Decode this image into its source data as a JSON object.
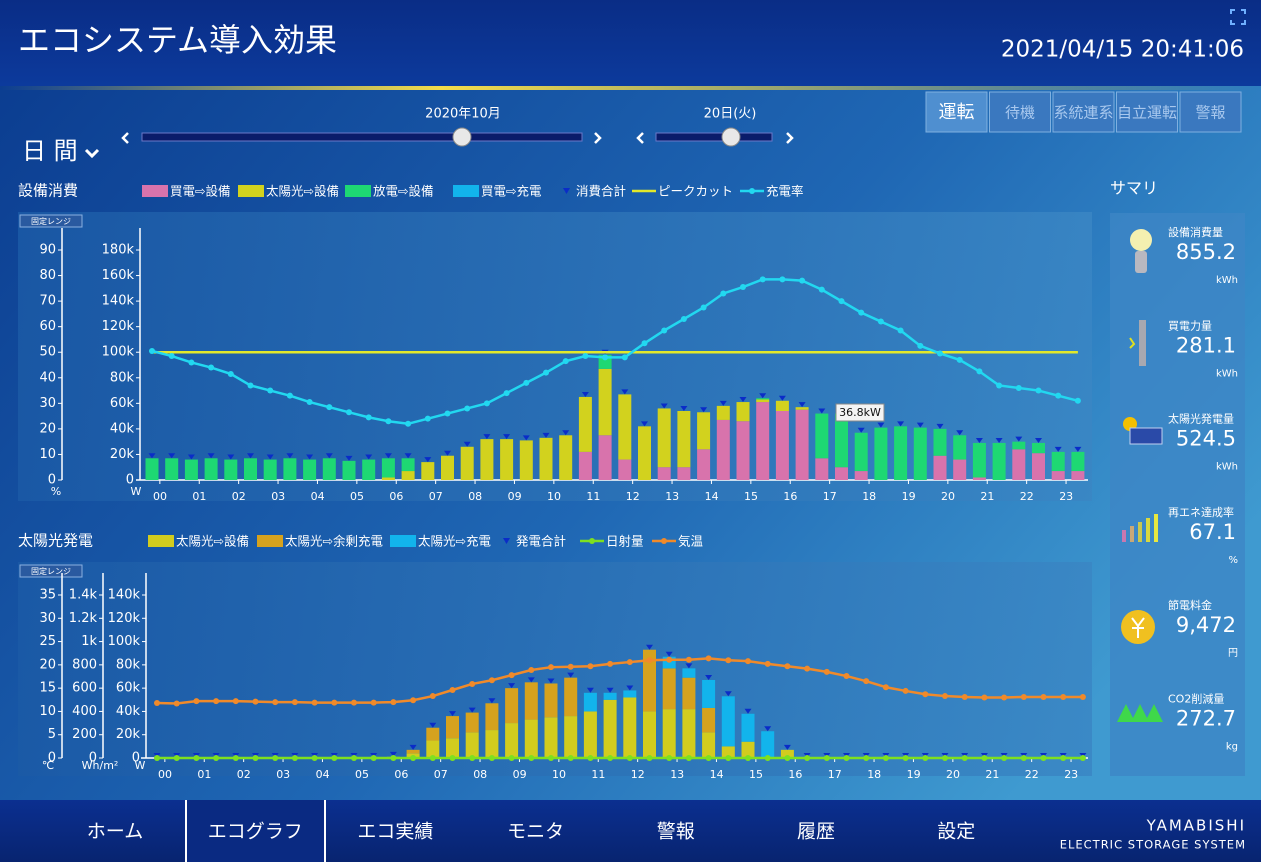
{
  "header": {
    "title": "エコシステム導入効果",
    "datetime": "2021/04/15 20:41:06"
  },
  "modes": [
    "運転",
    "待機",
    "系統連系",
    "自立運転",
    "警報"
  ],
  "period": {
    "view": "日 間",
    "month": "2020年10月",
    "day": "20日(火)"
  },
  "summary": {
    "title": "サマリ",
    "items": [
      {
        "label": "設備消費量",
        "value": "855.2",
        "unit": "kWh"
      },
      {
        "label": "買電力量",
        "value": "281.1",
        "unit": "kWh"
      },
      {
        "label": "太陽光発電量",
        "value": "524.5",
        "unit": "kWh"
      },
      {
        "label": "再エネ達成率",
        "value": "67.1",
        "unit": "%"
      },
      {
        "label": "節電料金",
        "value": "9,472",
        "unit": "円"
      },
      {
        "label": "CO2削減量",
        "value": "272.7",
        "unit": "kg"
      }
    ]
  },
  "nav": [
    "ホーム",
    "エコグラフ",
    "エコ実績",
    "モニタ",
    "警報",
    "履歴",
    "設定"
  ],
  "logo": {
    "name": "YAMABISHI",
    "tagline": "ELECTRIC STORAGE SYSTEM"
  },
  "chart_data": [
    {
      "type": "bar",
      "title": "設備消費",
      "range_button": "固定レンジ",
      "tooltip": "36.8kW",
      "categories": [
        "00",
        null,
        "01",
        null,
        "02",
        null,
        "03",
        null,
        "04",
        null,
        "05",
        null,
        "06",
        null,
        "07",
        null,
        "08",
        null,
        "09",
        null,
        "10",
        null,
        "11",
        null,
        "12",
        null,
        "13",
        null,
        "14",
        null,
        "15",
        null,
        "16",
        null,
        "17",
        null,
        "18",
        null,
        "19",
        null,
        "20",
        null,
        "21",
        null,
        "22",
        null,
        "23",
        null
      ],
      "ylim": [
        0,
        180000
      ],
      "yticks": [
        0,
        {
          "value": 20000,
          "label": "20k"
        },
        {
          "value": 40000,
          "label": "40k"
        },
        {
          "value": 60000,
          "label": "60k"
        },
        {
          "value": 80000,
          "label": "80k"
        },
        {
          "value": 100000,
          "label": "100k"
        },
        {
          "value": 120000,
          "label": "120k"
        },
        {
          "value": 140000,
          "label": "140k"
        },
        {
          "value": 160000,
          "label": "160k"
        },
        {
          "value": 180000,
          "label": "180k"
        }
      ],
      "ylabel": "W",
      "y2lim": [
        0,
        90
      ],
      "y2ticks": [
        0,
        10,
        20,
        30,
        40,
        50,
        60,
        70,
        80,
        90
      ],
      "y2label": "%",
      "series": [
        {
          "name": "買電⇨設備",
          "kind": "bar",
          "color": "#d873ac",
          "values": [
            0,
            0,
            0,
            0,
            0,
            0,
            0,
            0,
            0,
            0,
            0,
            0,
            0,
            0,
            0,
            0,
            0,
            0,
            0,
            0,
            0,
            0,
            22000,
            35000,
            16000,
            0,
            10000,
            10000,
            24000,
            47000,
            46000,
            61000,
            54000,
            55000,
            17000,
            10000,
            7000,
            0,
            0,
            0,
            19000,
            16000,
            2000,
            0,
            24000,
            21000,
            7000,
            7000
          ]
        },
        {
          "name": "太陽光⇨設備",
          "kind": "bar",
          "color": "#d2d21e",
          "values": [
            0,
            0,
            0,
            0,
            0,
            0,
            0,
            0,
            0,
            0,
            0,
            0,
            2000,
            7000,
            14000,
            19000,
            26000,
            32000,
            32000,
            31000,
            33000,
            35000,
            43000,
            52000,
            51000,
            42000,
            46000,
            44000,
            29000,
            11000,
            15000,
            2000,
            8000,
            2000,
            0,
            0,
            0,
            0,
            0,
            0,
            0,
            0,
            0,
            0,
            0,
            0,
            0,
            0
          ]
        },
        {
          "name": "放電⇨設備",
          "kind": "bar",
          "color": "#1ed873",
          "values": [
            17000,
            17000,
            16000,
            17000,
            16000,
            17000,
            16000,
            17000,
            16000,
            17000,
            15000,
            16000,
            15000,
            10000,
            0,
            0,
            0,
            0,
            0,
            0,
            0,
            0,
            0,
            11000,
            0,
            0,
            0,
            0,
            0,
            0,
            0,
            1000,
            0,
            0,
            35000,
            42000,
            30000,
            41000,
            42000,
            41000,
            21000,
            19000,
            27000,
            29000,
            6000,
            8000,
            15000,
            15000
          ]
        },
        {
          "name": "買電⇨充電",
          "kind": "bar",
          "color": "#12b4ec",
          "values": [
            0,
            0,
            0,
            0,
            0,
            0,
            0,
            0,
            0,
            0,
            0,
            0,
            0,
            0,
            0,
            0,
            0,
            0,
            0,
            0,
            0,
            0,
            0,
            0,
            0,
            0,
            0,
            0,
            0,
            0,
            0,
            0,
            0,
            0,
            0,
            0,
            0,
            0,
            0,
            0,
            0,
            0,
            0,
            0,
            0,
            0,
            0,
            0
          ]
        },
        {
          "name": "消費合計",
          "kind": "marker",
          "color": "#0a2cc8",
          "values": [
            17000,
            17000,
            16000,
            17000,
            16000,
            17000,
            16000,
            17000,
            16000,
            17000,
            15000,
            16000,
            17000,
            17000,
            14000,
            19000,
            26000,
            32000,
            32000,
            31000,
            33000,
            35000,
            65000,
            98000,
            67000,
            42000,
            56000,
            54000,
            53000,
            58000,
            61000,
            64000,
            62000,
            57000,
            52000,
            52000,
            37000,
            41000,
            42000,
            41000,
            40000,
            35000,
            29000,
            29000,
            30000,
            29000,
            22000,
            22000
          ]
        },
        {
          "name": "ピークカット",
          "kind": "hline",
          "color": "#e2e82a",
          "value": 100000
        },
        {
          "name": "充電率",
          "kind": "line",
          "axis": "y2",
          "color": "#22d8f0",
          "values": [
            50.5,
            48.5,
            46,
            44,
            41.5,
            37,
            35,
            33,
            30.5,
            28.5,
            26.5,
            24.5,
            23,
            22,
            24,
            26,
            28,
            30,
            34,
            38,
            42,
            46.5,
            48.5,
            48,
            48,
            53.5,
            58.5,
            63,
            67.5,
            73,
            75.5,
            78.5,
            78.5,
            78,
            74.5,
            70,
            65.5,
            62,
            58.5,
            52.5,
            49.5,
            47,
            42.5,
            37,
            36,
            35,
            33,
            31
          ]
        }
      ]
    },
    {
      "type": "bar",
      "title": "太陽光発電",
      "range_button": "固定レンジ",
      "categories": [
        "00",
        null,
        "01",
        null,
        "02",
        null,
        "03",
        null,
        "04",
        null,
        "05",
        null,
        "06",
        null,
        "07",
        null,
        "08",
        null,
        "09",
        null,
        "10",
        null,
        "11",
        null,
        "12",
        null,
        "13",
        null,
        "14",
        null,
        "15",
        null,
        "16",
        null,
        "17",
        null,
        "18",
        null,
        "19",
        null,
        "20",
        null,
        "21",
        null,
        "22",
        null,
        "23",
        null
      ],
      "ylim": [
        0,
        140000
      ],
      "yticks": [
        0,
        {
          "value": 20000,
          "label": "20k"
        },
        {
          "value": 40000,
          "label": "40k"
        },
        {
          "value": 60000,
          "label": "60k"
        },
        {
          "value": 80000,
          "label": "80k"
        },
        {
          "value": 100000,
          "label": "100k"
        },
        {
          "value": 120000,
          "label": "120k"
        },
        {
          "value": 140000,
          "label": "140k"
        }
      ],
      "ylabel": "W",
      "y2lim": [
        0,
        35
      ],
      "y2ticks": [
        0,
        5,
        10,
        15,
        20,
        25,
        30,
        35
      ],
      "y2label": "℃",
      "y3lim": [
        0,
        1400
      ],
      "y3ticks": [
        0,
        200,
        400,
        600,
        800,
        {
          "value": 1000,
          "label": "1k"
        },
        {
          "value": 1200,
          "label": "1.2k"
        },
        {
          "value": 1400,
          "label": "1.4k"
        }
      ],
      "y3label": "Wh/m²",
      "series": [
        {
          "name": "太陽光⇨設備",
          "kind": "bar",
          "color": "#d2cc1e",
          "values": [
            0,
            0,
            0,
            0,
            0,
            0,
            0,
            0,
            0,
            0,
            0,
            0,
            1000,
            4000,
            15000,
            17000,
            22000,
            24000,
            30000,
            33000,
            35000,
            36000,
            40000,
            50000,
            52000,
            40000,
            42000,
            42000,
            22000,
            10000,
            14000,
            0,
            7000,
            0,
            0,
            0,
            0,
            0,
            0,
            0,
            0,
            0,
            0,
            0,
            0,
            0,
            0,
            0
          ]
        },
        {
          "name": "太陽光⇨余剰充電",
          "kind": "bar",
          "color": "#d6a21e",
          "values": [
            0,
            0,
            0,
            0,
            0,
            0,
            0,
            0,
            0,
            0,
            0,
            0,
            0,
            3000,
            11000,
            19000,
            17000,
            23000,
            30000,
            32000,
            29000,
            33000,
            0,
            0,
            0,
            53000,
            35000,
            27000,
            21000,
            0,
            0,
            0,
            0,
            0,
            0,
            0,
            0,
            0,
            0,
            0,
            0,
            0,
            0,
            0,
            0,
            0,
            0,
            0
          ]
        },
        {
          "name": "太陽光⇨充電",
          "kind": "bar",
          "color": "#12b4ec",
          "values": [
            0,
            0,
            0,
            0,
            0,
            0,
            0,
            0,
            0,
            0,
            0,
            0,
            0,
            0,
            0,
            0,
            0,
            0,
            0,
            0,
            0,
            0,
            16000,
            6000,
            6000,
            0,
            10000,
            8000,
            24000,
            43000,
            24000,
            23000,
            0,
            0,
            0,
            0,
            0,
            0,
            0,
            0,
            0,
            0,
            0,
            0,
            0,
            0,
            0,
            0
          ]
        },
        {
          "name": "発電合計",
          "kind": "marker",
          "color": "#0a2cc8",
          "values": [
            0,
            0,
            0,
            0,
            0,
            0,
            0,
            0,
            0,
            0,
            0,
            0,
            1000,
            7000,
            26000,
            36000,
            39000,
            47000,
            60000,
            65000,
            64000,
            69000,
            56000,
            56000,
            58000,
            93000,
            87000,
            77000,
            67000,
            53000,
            38000,
            23000,
            7000,
            0,
            0,
            0,
            0,
            0,
            0,
            0,
            0,
            0,
            0,
            0,
            0,
            0,
            0,
            0
          ]
        },
        {
          "name": "日射量",
          "kind": "line",
          "axis": "y3",
          "color": "#7ee020",
          "values": [
            0,
            0,
            0,
            0,
            0,
            0,
            0,
            0,
            0,
            0,
            0,
            0,
            0,
            0,
            0,
            0,
            0,
            0,
            0,
            0,
            0,
            0,
            0,
            0,
            0,
            0,
            0,
            0,
            0,
            0,
            0,
            0,
            0,
            0,
            0,
            0,
            0,
            0,
            0,
            0,
            0,
            0,
            0,
            0,
            0,
            0,
            0,
            0
          ]
        },
        {
          "name": "気温",
          "kind": "line",
          "axis": "y2",
          "color": "#f08a2a",
          "values": [
            11.8,
            11.7,
            12.2,
            12.2,
            12.2,
            12.1,
            12,
            12,
            11.9,
            11.9,
            11.9,
            11.9,
            12,
            12.4,
            13.3,
            14.6,
            15.9,
            16.7,
            17.8,
            18.9,
            19.5,
            19.6,
            19.7,
            20.2,
            20.6,
            21,
            21.1,
            21.1,
            21.4,
            21,
            20.8,
            20.2,
            19.7,
            19.2,
            18.5,
            17.6,
            16.5,
            15.2,
            14.4,
            13.7,
            13.3,
            13.1,
            13,
            13,
            13.1,
            13.1,
            13.1,
            13.1
          ]
        }
      ]
    }
  ]
}
